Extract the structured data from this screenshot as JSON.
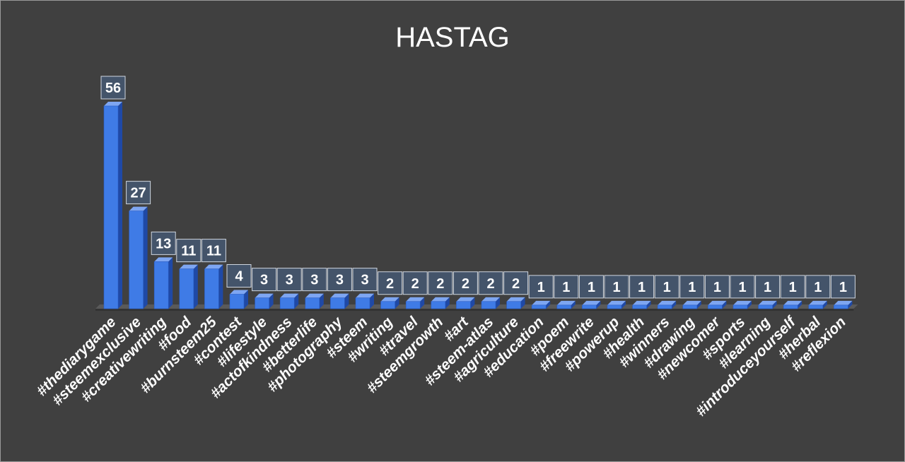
{
  "chart_data": {
    "type": "bar",
    "title": "HASTAG",
    "xlabel": "",
    "ylabel": "",
    "ylim": [
      0,
      60
    ],
    "grid": false,
    "legend": "none",
    "data_labels": true,
    "bar_color": "#3f7be6",
    "categories": [
      "#thediarygame",
      "#steemexclusive",
      "#creativewriting",
      "#food",
      "#burnsteem25",
      "#contest",
      "#lifestyle",
      "#actofkindness",
      "#betterlife",
      "#photography",
      "#steem",
      "#writing",
      "#travel",
      "#steemgrowth",
      "#art",
      "#steem-atlas",
      "#agriculture",
      "#education",
      "#poem",
      "#freewrite",
      "#powerup",
      "#health",
      "#winners",
      "#drawing",
      "#newcomer",
      "#sports",
      "#learning",
      "#introduceyourself",
      "#herbal",
      "#reflexion"
    ],
    "values": [
      56,
      27,
      13,
      11,
      11,
      4,
      3,
      3,
      3,
      3,
      3,
      2,
      2,
      2,
      2,
      2,
      2,
      1,
      1,
      1,
      1,
      1,
      1,
      1,
      1,
      1,
      1,
      1,
      1,
      1
    ]
  }
}
